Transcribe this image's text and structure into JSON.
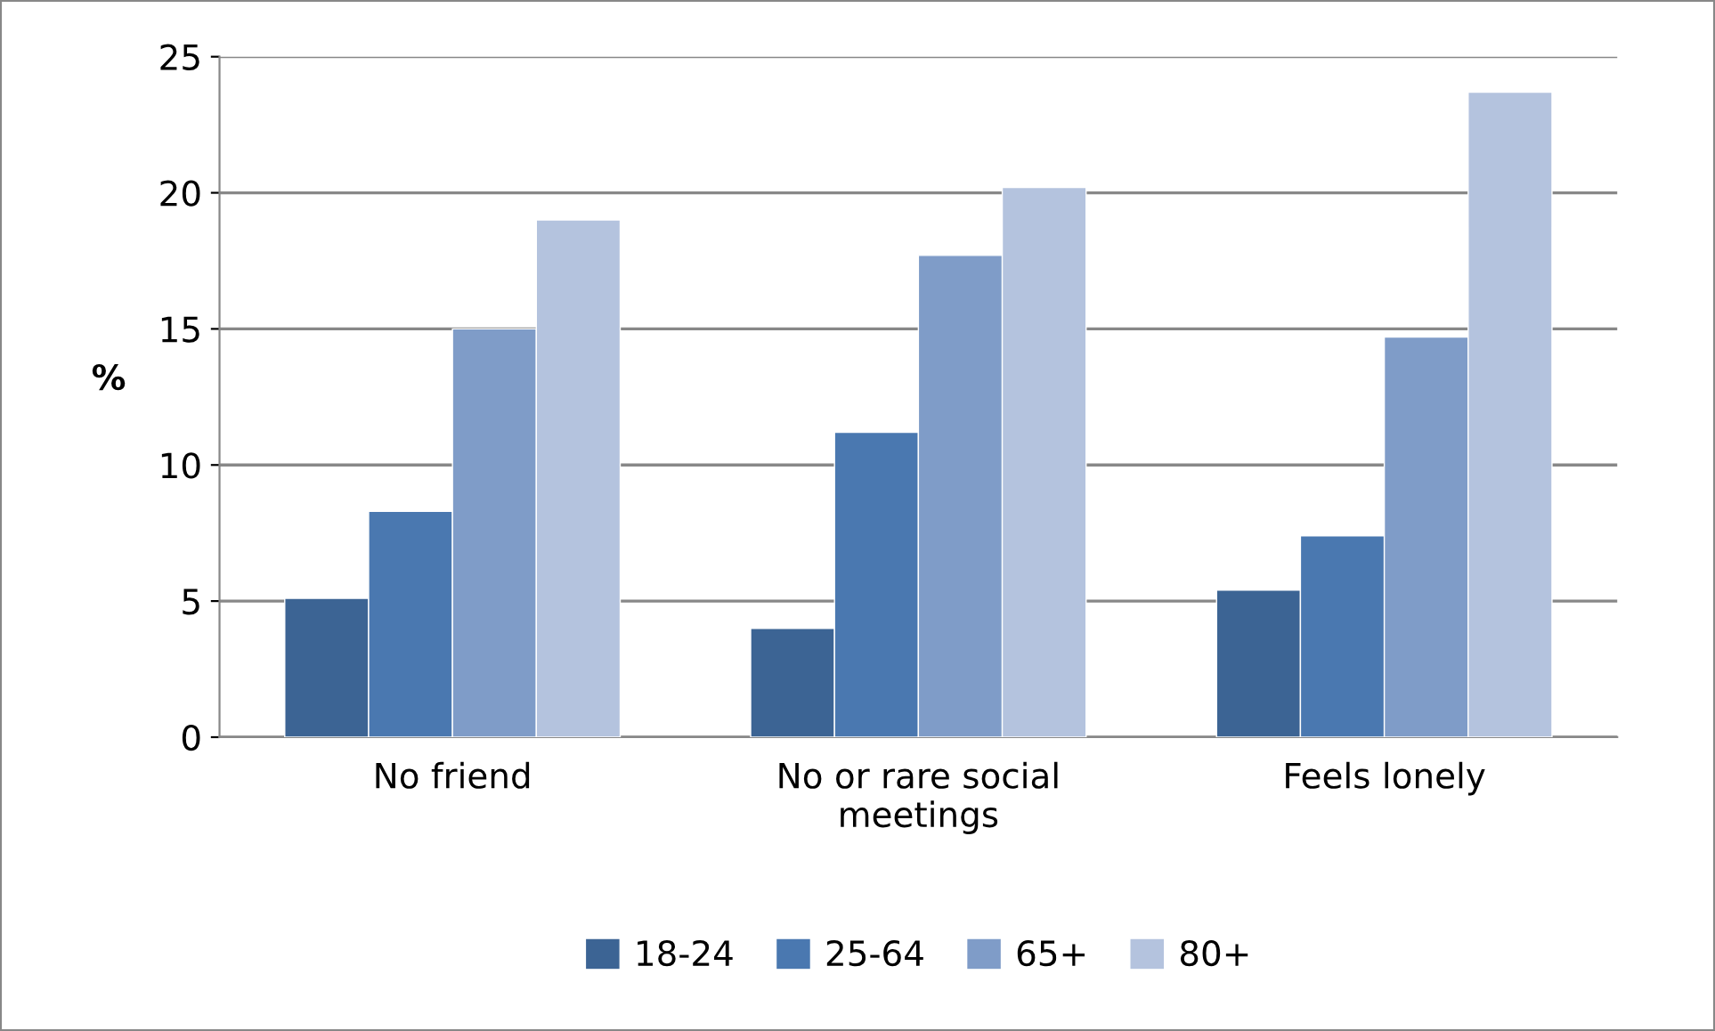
{
  "chart_data": {
    "type": "bar",
    "ylabel": "%",
    "categories": [
      "No friend",
      "No or rare social\nmeetings",
      "Feels lonely"
    ],
    "series": [
      {
        "name": "18-24",
        "color": "#3c6494",
        "values": [
          5.1,
          4.0,
          5.4
        ]
      },
      {
        "name": "25-64",
        "color": "#4a78b0",
        "values": [
          8.3,
          11.2,
          7.4
        ]
      },
      {
        "name": "65+",
        "color": "#7f9cc8",
        "values": [
          15.0,
          17.7,
          14.7
        ]
      },
      {
        "name": "80+",
        "color": "#b4c3de",
        "values": [
          19.0,
          20.2,
          23.7
        ]
      }
    ],
    "ylim": [
      0,
      25
    ],
    "yticks": [
      0,
      5,
      10,
      15,
      20,
      25
    ],
    "grid": "y",
    "legend": "bottom"
  }
}
